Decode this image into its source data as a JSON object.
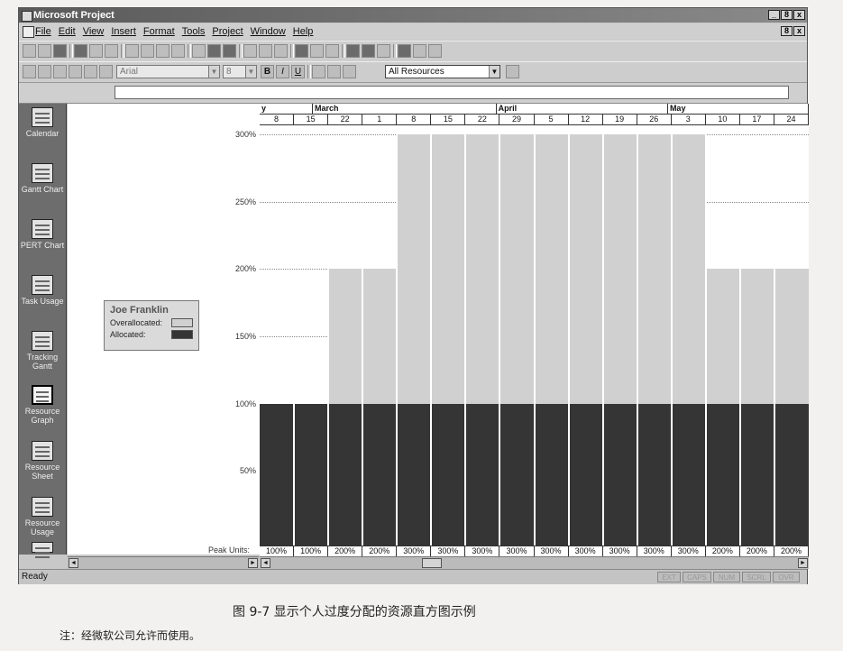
{
  "window": {
    "title": "Microsoft Project",
    "controls": [
      "_",
      "8",
      "x"
    ],
    "doc_controls": [
      "8",
      "x"
    ]
  },
  "menu": [
    "File",
    "Edit",
    "View",
    "Insert",
    "Format",
    "Tools",
    "Project",
    "Window",
    "Help"
  ],
  "format_toolbar": {
    "font_name": "Arial",
    "font_size": "8",
    "bold": "B",
    "italic": "I",
    "underline": "U",
    "resource_filter": "All Resources"
  },
  "view_bar": [
    {
      "label": "Calendar",
      "icon": "calendar-icon"
    },
    {
      "label": "Gantt Chart",
      "icon": "gantt-chart-icon"
    },
    {
      "label": "PERT Chart",
      "icon": "pert-chart-icon"
    },
    {
      "label": "Task Usage",
      "icon": "task-usage-icon"
    },
    {
      "label": "Tracking Gantt",
      "icon": "tracking-gantt-icon"
    },
    {
      "label": "Resource Graph",
      "icon": "resource-graph-icon",
      "active": true
    },
    {
      "label": "Resource Sheet",
      "icon": "resource-sheet-icon"
    },
    {
      "label": "Resource Usage",
      "icon": "resource-usage-icon"
    }
  ],
  "legend": {
    "resource_name": "Joe Franklin",
    "overallocated_label": "Overallocated:",
    "allocated_label": "Allocated:",
    "overallocated_color": "#d0d0d0",
    "allocated_color": "#353535"
  },
  "timescale": {
    "months": [
      "y",
      "March",
      "April",
      "May"
    ],
    "weeks": [
      "8",
      "15",
      "22",
      "1",
      "8",
      "15",
      "22",
      "29",
      "5",
      "12",
      "19",
      "26",
      "3",
      "10",
      "17",
      "24"
    ]
  },
  "peak_units_label": "Peak Units:",
  "chart_data": {
    "type": "bar",
    "ylim": [
      0,
      300
    ],
    "yticks": [
      "300%",
      "250%",
      "200%",
      "150%",
      "100%",
      "50%"
    ],
    "categories": [
      "8",
      "15",
      "22",
      "1",
      "8",
      "15",
      "22",
      "29",
      "5",
      "12",
      "19",
      "26",
      "3",
      "10",
      "17",
      "24"
    ],
    "series": [
      {
        "name": "Allocated",
        "values": [
          100,
          100,
          100,
          100,
          100,
          100,
          100,
          100,
          100,
          100,
          100,
          100,
          100,
          100,
          100,
          100
        ]
      },
      {
        "name": "Overallocated",
        "values": [
          0,
          0,
          100,
          100,
          200,
          200,
          200,
          200,
          200,
          200,
          200,
          200,
          200,
          100,
          100,
          100
        ]
      }
    ],
    "peak_units": [
      "100%",
      "100%",
      "200%",
      "200%",
      "300%",
      "300%",
      "300%",
      "300%",
      "300%",
      "300%",
      "300%",
      "300%",
      "300%",
      "200%",
      "200%",
      "200%"
    ]
  },
  "status": {
    "text": "Ready",
    "indicators": [
      "EXT",
      "CAPS",
      "NUM",
      "SCRL",
      "OVR"
    ]
  },
  "caption": "图 9-7   显示个人过度分配的资源直方图示例",
  "note": "注：经微软公司允许而使用。"
}
